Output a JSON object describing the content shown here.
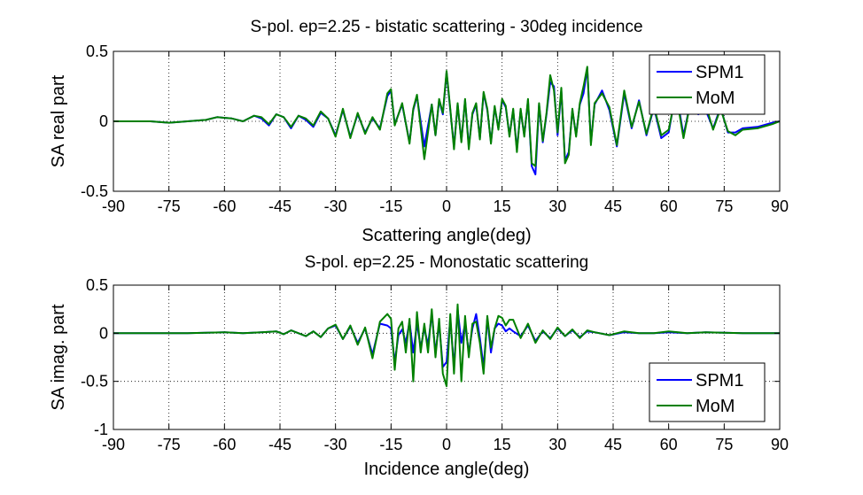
{
  "chart_data": [
    {
      "type": "line",
      "title": "S-pol. ep=2.25 - bistatic scattering - 30deg incidence",
      "xlabel": "Scattering angle(deg)",
      "ylabel": "SA real part",
      "xlim": [
        -90,
        90
      ],
      "ylim": [
        -0.5,
        0.5
      ],
      "xticks": [
        -90,
        -75,
        -60,
        -45,
        -30,
        -15,
        0,
        15,
        30,
        45,
        60,
        75,
        90
      ],
      "yticks": [
        -0.5,
        0,
        0.5
      ],
      "xtick_labels": [
        "-90",
        "-75",
        "-60",
        "-45",
        "-30",
        "-15",
        "0",
        "15",
        "30",
        "45",
        "60",
        "75",
        "90"
      ],
      "ytick_labels": [
        "-0.5",
        "0",
        "0.5"
      ],
      "grid": true,
      "legend_position": "top-right",
      "colors": {
        "SPM1": "#0000ff",
        "MoM": "#008000"
      },
      "series": [
        {
          "name": "SPM1",
          "x": [
            -90,
            -80,
            -75,
            -70,
            -65,
            -62,
            -58,
            -55,
            -52,
            -50,
            -48,
            -46,
            -44,
            -42,
            -40,
            -38,
            -36,
            -34,
            -32,
            -30,
            -28,
            -26,
            -24,
            -22,
            -20,
            -18,
            -16,
            -15,
            -14,
            -12,
            -10,
            -9,
            -8,
            -6,
            -4,
            -3,
            -2,
            -1,
            0,
            1,
            2,
            3,
            4,
            5,
            6,
            7,
            8,
            9,
            10,
            11,
            12,
            13,
            14,
            15,
            16,
            17,
            18,
            19,
            20,
            21,
            22,
            23,
            24,
            25,
            26,
            27,
            28,
            29,
            30,
            31,
            32,
            33,
            34,
            35,
            36,
            37,
            38,
            39,
            40,
            42,
            44,
            46,
            48,
            50,
            52,
            54,
            56,
            58,
            60,
            62,
            64,
            66,
            68,
            70,
            72,
            74,
            76,
            78,
            80,
            84,
            88,
            90
          ],
          "values": [
            0,
            0,
            -0.01,
            0,
            0.01,
            0.03,
            0.02,
            0,
            0.04,
            0.02,
            -0.03,
            0.05,
            0.03,
            -0.05,
            0.04,
            0.01,
            -0.04,
            0.06,
            0.02,
            -0.1,
            0.08,
            -0.11,
            0.05,
            -0.08,
            0.02,
            -0.05,
            0.18,
            0.22,
            -0.02,
            0.12,
            -0.15,
            0.08,
            0.18,
            -0.18,
            0.12,
            -0.1,
            0.15,
            0.05,
            0.35,
            0.08,
            -0.18,
            0.12,
            -0.14,
            0.15,
            -0.18,
            0.05,
            0.12,
            -0.12,
            0.2,
            0.08,
            -0.15,
            0.1,
            -0.05,
            0.15,
            0.1,
            -0.1,
            0.08,
            -0.2,
            0.08,
            -0.1,
            0.15,
            -0.32,
            -0.38,
            0.12,
            -0.15,
            0.05,
            0.28,
            0.25,
            -0.1,
            0.22,
            -0.28,
            -0.22,
            0.08,
            -0.1,
            0.12,
            0.2,
            0.38,
            -0.15,
            0.12,
            0.22,
            0.08,
            -0.18,
            0.2,
            -0.05,
            0.15,
            -0.1,
            0.1,
            -0.12,
            -0.08,
            0.22,
            -0.1,
            0.15,
            0.05,
            0.08,
            -0.05,
            0.1,
            -0.08,
            -0.08,
            -0.05,
            -0.04,
            -0.01,
            0
          ]
        },
        {
          "name": "MoM",
          "x": [
            -90,
            -80,
            -75,
            -70,
            -65,
            -62,
            -58,
            -55,
            -52,
            -50,
            -48,
            -46,
            -44,
            -42,
            -40,
            -38,
            -36,
            -34,
            -32,
            -30,
            -28,
            -26,
            -24,
            -22,
            -20,
            -18,
            -16,
            -15,
            -14,
            -12,
            -10,
            -9,
            -8,
            -6,
            -4,
            -3,
            -2,
            -1,
            0,
            1,
            2,
            3,
            4,
            5,
            6,
            7,
            8,
            9,
            10,
            11,
            12,
            13,
            14,
            15,
            16,
            17,
            18,
            19,
            20,
            21,
            22,
            23,
            24,
            25,
            26,
            27,
            28,
            29,
            30,
            31,
            32,
            33,
            34,
            35,
            36,
            37,
            38,
            39,
            40,
            42,
            44,
            46,
            48,
            50,
            52,
            54,
            56,
            58,
            60,
            62,
            64,
            66,
            68,
            70,
            72,
            74,
            76,
            78,
            80,
            84,
            88,
            90
          ],
          "values": [
            0,
            0,
            -0.01,
            0,
            0.01,
            0.03,
            0.02,
            0,
            0.04,
            0.03,
            -0.02,
            0.05,
            0.03,
            -0.04,
            0.04,
            0.02,
            -0.03,
            0.07,
            0.02,
            -0.11,
            0.09,
            -0.12,
            0.06,
            -0.09,
            0.03,
            -0.06,
            0.2,
            0.23,
            -0.03,
            0.13,
            -0.16,
            0.09,
            0.19,
            -0.27,
            0.12,
            -0.1,
            0.16,
            0.06,
            0.36,
            0.09,
            -0.2,
            0.13,
            -0.15,
            0.16,
            -0.2,
            0.06,
            0.13,
            -0.13,
            0.21,
            0.09,
            -0.16,
            0.11,
            -0.06,
            0.16,
            0.11,
            -0.11,
            0.09,
            -0.22,
            0.09,
            -0.11,
            0.16,
            -0.3,
            -0.32,
            0.13,
            -0.14,
            0.06,
            0.33,
            0.22,
            -0.08,
            0.24,
            -0.3,
            -0.24,
            0.09,
            -0.11,
            0.13,
            0.25,
            0.39,
            -0.17,
            0.13,
            0.2,
            0.1,
            -0.17,
            0.22,
            -0.04,
            0.14,
            -0.09,
            0.11,
            -0.1,
            -0.06,
            0.2,
            -0.12,
            0.15,
            0.07,
            0.12,
            -0.06,
            0.09,
            -0.07,
            -0.1,
            -0.06,
            -0.05,
            -0.02,
            0
          ]
        }
      ]
    },
    {
      "type": "line",
      "title": "S-pol. ep=2.25 - Monostatic scattering",
      "xlabel": "Incidence angle(deg)",
      "ylabel": "SA imag. part",
      "xlim": [
        -90,
        90
      ],
      "ylim": [
        -1,
        0.5
      ],
      "xticks": [
        -90,
        -75,
        -60,
        -45,
        -30,
        -15,
        0,
        15,
        30,
        45,
        60,
        75,
        90
      ],
      "yticks": [
        -1,
        -0.5,
        0,
        0.5
      ],
      "xtick_labels": [
        "-90",
        "-75",
        "-60",
        "-45",
        "-30",
        "-15",
        "0",
        "15",
        "30",
        "45",
        "60",
        "75",
        "90"
      ],
      "ytick_labels": [
        "-1",
        "-0.5",
        "0",
        "0.5"
      ],
      "grid": true,
      "legend_position": "bottom-right",
      "colors": {
        "SPM1": "#0000ff",
        "MoM": "#008000"
      },
      "series": [
        {
          "name": "SPM1",
          "x": [
            -90,
            -70,
            -60,
            -55,
            -50,
            -46,
            -44,
            -42,
            -40,
            -38,
            -36,
            -34,
            -32,
            -30,
            -28,
            -26,
            -24,
            -22,
            -20,
            -18,
            -16,
            -15,
            -14,
            -13,
            -12,
            -11,
            -10,
            -9,
            -8,
            -7,
            -6,
            -5,
            -4,
            -3,
            -2,
            -1,
            0,
            1,
            2,
            3,
            4,
            5,
            6,
            7,
            8,
            9,
            10,
            11,
            12,
            13,
            14,
            15,
            16,
            17,
            18,
            20,
            22,
            24,
            26,
            28,
            30,
            32,
            34,
            36,
            38,
            40,
            44,
            48,
            52,
            56,
            60,
            65,
            70,
            80,
            90
          ],
          "values": [
            0,
            0,
            0.01,
            0,
            0.01,
            0.02,
            -0.01,
            0.03,
            0,
            -0.03,
            0.02,
            -0.04,
            0.05,
            0.08,
            -0.06,
            0.07,
            -0.1,
            0.05,
            -0.22,
            0.1,
            0.08,
            0.05,
            -0.3,
            -0.02,
            0.04,
            -0.1,
            0.12,
            -0.2,
            0.1,
            -0.15,
            0.05,
            -0.12,
            0.2,
            -0.2,
            0.1,
            -0.35,
            -0.3,
            0.15,
            -0.35,
            0.25,
            -0.1,
            0.1,
            -0.2,
            0.05,
            0.2,
            -0.05,
            -0.35,
            0.15,
            -0.2,
            0.05,
            0.1,
            0.08,
            0.02,
            0.05,
            0.02,
            -0.03,
            0.08,
            -0.08,
            0.02,
            -0.05,
            0.05,
            -0.03,
            0.03,
            -0.04,
            0.02,
            0.01,
            -0.02,
            0.01,
            0,
            0,
            0.01,
            0,
            0.01,
            0,
            0
          ]
        },
        {
          "name": "MoM",
          "x": [
            -90,
            -70,
            -60,
            -55,
            -50,
            -46,
            -44,
            -42,
            -40,
            -38,
            -36,
            -34,
            -32,
            -30,
            -28,
            -26,
            -24,
            -22,
            -20,
            -18,
            -16,
            -15,
            -14,
            -13,
            -12,
            -11,
            -10,
            -9,
            -8,
            -7,
            -6,
            -5,
            -4,
            -3,
            -2,
            -1,
            0,
            1,
            2,
            3,
            4,
            5,
            6,
            7,
            8,
            9,
            10,
            11,
            12,
            13,
            14,
            15,
            16,
            17,
            18,
            20,
            22,
            24,
            26,
            28,
            30,
            32,
            34,
            36,
            38,
            40,
            44,
            48,
            52,
            56,
            60,
            65,
            70,
            80,
            90
          ],
          "values": [
            0,
            0,
            0.01,
            0,
            0.01,
            0.02,
            -0.01,
            0.03,
            0,
            -0.03,
            0.02,
            -0.04,
            0.05,
            0.09,
            -0.06,
            0.08,
            -0.12,
            0.06,
            -0.26,
            0.12,
            0.2,
            0.15,
            -0.38,
            0.05,
            0.12,
            -0.2,
            0.15,
            -0.5,
            0.22,
            -0.2,
            0.1,
            -0.2,
            0.25,
            -0.25,
            0.15,
            -0.42,
            -0.55,
            0.2,
            -0.42,
            0.3,
            -0.5,
            0.18,
            -0.25,
            0.1,
            0.12,
            -0.1,
            -0.42,
            0.18,
            -0.15,
            0.05,
            0.18,
            0.16,
            0.08,
            0.14,
            0.14,
            -0.05,
            0.1,
            -0.1,
            0.03,
            -0.06,
            0.06,
            -0.03,
            0.04,
            -0.05,
            0.03,
            0.01,
            -0.02,
            0.02,
            0,
            0,
            0.02,
            0,
            0.01,
            0,
            0
          ]
        }
      ]
    }
  ]
}
